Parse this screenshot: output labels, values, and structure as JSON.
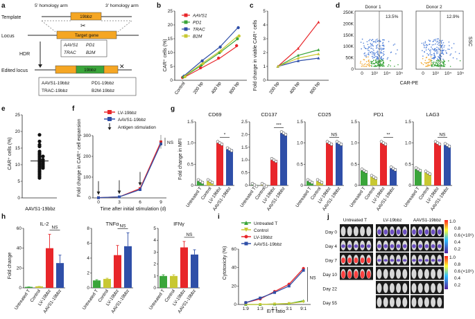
{
  "colors": {
    "red": "#e8262a",
    "green": "#3aa53a",
    "blue": "#2f4fa8",
    "yellowgreen": "#c8c832",
    "orange": "#f0a830",
    "gray": "#888888"
  },
  "panels": {
    "a": "a",
    "b": "b",
    "c": "c",
    "d": "d",
    "e": "e",
    "f": "f",
    "g": "g",
    "h": "h",
    "i": "i",
    "j": "j"
  },
  "a": {
    "template": "Template",
    "locus": "Locus",
    "hdr": "HDR",
    "edited": "Edited locus",
    "arm5": "5′ homology arm",
    "arm3": "3′ homology arm",
    "insert": "19bbz",
    "target": "Target gene",
    "genes": [
      "AAVS1",
      "PD1",
      "TRAC",
      "B2M"
    ],
    "edited_names": [
      "AAVS1-19bbz",
      "PD1-19bbz",
      "TRAC-19bbz",
      "B2M-19bbz"
    ]
  },
  "b": {
    "ylabel": "CAR⁺ cells (%)",
    "chart_data": {
      "type": "line",
      "categories": [
        "Control",
        "200 bp",
        "400 bp",
        "800 bp"
      ],
      "ylim": [
        0,
        25
      ],
      "yticks": [
        "0",
        "5",
        "10",
        "15",
        "20",
        "25"
      ],
      "series": [
        {
          "name": "AAVS1",
          "color": "#e8262a",
          "values": [
            1,
            4.5,
            8,
            12.5
          ]
        },
        {
          "name": "PD1",
          "color": "#3aa53a",
          "values": [
            1.2,
            5.5,
            10,
            15
          ]
        },
        {
          "name": "TRAC",
          "color": "#2f4fa8",
          "values": [
            1.5,
            7,
            12,
            19
          ]
        },
        {
          "name": "B2M",
          "color": "#c8c832",
          "values": [
            1.3,
            6,
            10.5,
            16
          ]
        }
      ]
    }
  },
  "c": {
    "ylabel": "Fold change in viable CAR⁺ cells",
    "chart_data": {
      "type": "line",
      "categories": [
        "200 bp",
        "400 bp",
        "800 bp"
      ],
      "ylim": [
        0,
        5
      ],
      "yticks": [
        "0",
        "1",
        "2",
        "3",
        "4",
        "5"
      ],
      "series": [
        {
          "name": "AAVS1",
          "color": "#e8262a",
          "values": [
            1,
            2.3,
            4.2
          ]
        },
        {
          "name": "PD1",
          "color": "#3aa53a",
          "values": [
            1,
            1.8,
            2.2
          ]
        },
        {
          "name": "TRAC",
          "color": "#2f4fa8",
          "values": [
            1,
            1.4,
            1.6
          ]
        },
        {
          "name": "B2M",
          "color": "#c8c832",
          "values": [
            1,
            1.6,
            1.9
          ]
        }
      ]
    }
  },
  "d": {
    "donor1": "Donor 1",
    "donor2": "Donor 2",
    "pct1": "13.5%",
    "pct2": "12.9%",
    "ylabel": "SSC",
    "xlabel": "CAR-PE",
    "yticks": [
      "250K",
      "200K",
      "150K",
      "100K",
      "50K",
      "0"
    ],
    "xticks": [
      "0",
      "10³",
      "10⁴",
      "10⁵"
    ]
  },
  "e": {
    "ylabel": "CAR⁺ cells (%)",
    "xlabel": "AAVS1-19bbz",
    "chart_data": {
      "type": "scatter",
      "ylim": [
        0,
        25
      ],
      "yticks": [
        "0",
        "5",
        "10",
        "15",
        "20",
        "25"
      ],
      "values": [
        19,
        17,
        16,
        15.5,
        14,
        13.5,
        13,
        12.5,
        12.5,
        12,
        11.5,
        11.5,
        11,
        11,
        10.5,
        10.5,
        10,
        10,
        9.5,
        9.5,
        9,
        9,
        8.5,
        8,
        7.5,
        7,
        6.5,
        6
      ]
    }
  },
  "f": {
    "ylabel": "Fold change in CAR⁺ cell expansion",
    "xlabel": "Time after initial stimulation (d)",
    "legend": [
      "LV-19bbz",
      "AAVS1-19bbz",
      "Antigen stimulation"
    ],
    "ns": "NS",
    "chart_data": {
      "type": "line",
      "x": [
        0,
        3,
        6,
        9
      ],
      "xticks": [
        "0",
        "3",
        "6",
        "9"
      ],
      "ylim": [
        0,
        300
      ],
      "yticks": [
        "0",
        "100",
        "200",
        "300"
      ],
      "series": [
        {
          "name": "LV-19bbz",
          "color": "#e8262a",
          "values": [
            1,
            5,
            45,
            270
          ]
        },
        {
          "name": "AAVS1-19bbz",
          "color": "#2f4fa8",
          "values": [
            1,
            5,
            40,
            260
          ]
        }
      ],
      "stimulation_days": [
        0,
        3,
        6
      ]
    }
  },
  "g": {
    "ylabel": "Fold change in MFI",
    "categories": [
      "Untreated T",
      "Control",
      "LV-19bbz",
      "AAVS1-19bbz"
    ],
    "chart_data": [
      {
        "title": "CD69",
        "ylim": [
          0,
          1.5
        ],
        "yticks": [
          "0",
          "0.5",
          "1.0",
          "1.5"
        ],
        "values": [
          0.1,
          0.1,
          1.0,
          0.85
        ],
        "sig": "*"
      },
      {
        "title": "CD137",
        "ylim": [
          0,
          2.5
        ],
        "yticks": [
          "0",
          "0.5",
          "1.0",
          "1.5",
          "2.0",
          "2.5"
        ],
        "values": [
          0.02,
          0.02,
          1.0,
          2.05
        ],
        "sig": "***"
      },
      {
        "title": "CD25",
        "ylim": [
          0,
          1.5
        ],
        "yticks": [
          "0",
          "0.5",
          "1.0",
          "1.5"
        ],
        "values": [
          0.1,
          0.1,
          1.0,
          1.0
        ],
        "sig": "NS"
      },
      {
        "title": "PD1",
        "ylim": [
          0,
          1.5
        ],
        "yticks": [
          "0",
          "0.5",
          "1.0",
          "1.5"
        ],
        "values": [
          0.35,
          0.2,
          1.0,
          0.4
        ],
        "sig": "**"
      },
      {
        "title": "LAG3",
        "ylim": [
          0,
          1.5
        ],
        "yticks": [
          "0",
          "0.5",
          "1.0",
          "1.5"
        ],
        "values": [
          0.38,
          0.3,
          1.0,
          0.95
        ],
        "sig": "NS"
      }
    ]
  },
  "h": {
    "ylabel": "Fold change",
    "categories": [
      "Untreated T",
      "Control",
      "LV-19bbz",
      "AAVS1-19bbz"
    ],
    "chart_data": [
      {
        "title": "IL-2",
        "ylim": [
          0,
          60
        ],
        "yticks": [
          "0",
          "20",
          "40",
          "60"
        ],
        "values": [
          1,
          1.5,
          40,
          25
        ],
        "err": [
          0,
          0,
          14,
          8
        ],
        "sig": "NS"
      },
      {
        "title": "TNFα",
        "ylim": [
          0,
          8
        ],
        "yticks": [
          "0",
          "2",
          "4",
          "6",
          "8"
        ],
        "values": [
          1,
          1.2,
          4.4,
          5.6
        ],
        "err": [
          0.1,
          0.1,
          1.3,
          1.8
        ],
        "sig": "NS"
      },
      {
        "title": "IFNγ",
        "ylim": [
          0,
          5
        ],
        "yticks": [
          "0",
          "1",
          "2",
          "3",
          "4",
          "5"
        ],
        "values": [
          1,
          1,
          3.4,
          2.8
        ],
        "err": [
          0.1,
          0.1,
          0.5,
          0.4
        ],
        "sig": "NS"
      }
    ]
  },
  "i": {
    "ylabel": "Cytotoxicity (%)",
    "xlabel": "E/T ratio",
    "ns": "NS",
    "chart_data": {
      "type": "line",
      "categories": [
        "1:9",
        "1:3",
        "1:1",
        "3:1",
        "9:1"
      ],
      "ylim": [
        0,
        60
      ],
      "yticks": [
        "0",
        "20",
        "40",
        "60"
      ],
      "series": [
        {
          "name": "Untreated T",
          "color": "#3aa53a",
          "values": [
            0,
            0,
            0.5,
            1,
            4
          ]
        },
        {
          "name": "Control",
          "color": "#c8c832",
          "values": [
            0,
            0,
            0.5,
            1,
            3
          ]
        },
        {
          "name": "LV-19bbz",
          "color": "#e8262a",
          "values": [
            2,
            6,
            14,
            22,
            39
          ]
        },
        {
          "name": "AAVS1-19bbz",
          "color": "#2f4fa8",
          "values": [
            2,
            7,
            13,
            20,
            37
          ]
        }
      ]
    }
  },
  "j": {
    "cols": [
      "Untreated T",
      "LV-19bbz",
      "AAVS1-19bbz"
    ],
    "days": [
      "Day 0",
      "Day 4",
      "Day 7",
      "Day 10",
      "Day 22",
      "Day 55"
    ],
    "scale1": [
      "1.0",
      "0.8",
      "0.6",
      "0.4",
      "0.2"
    ],
    "scale2": [
      "1.0",
      "0.8",
      "0.6",
      "0.4",
      "0.2"
    ],
    "unit": "(×10⁶)"
  }
}
